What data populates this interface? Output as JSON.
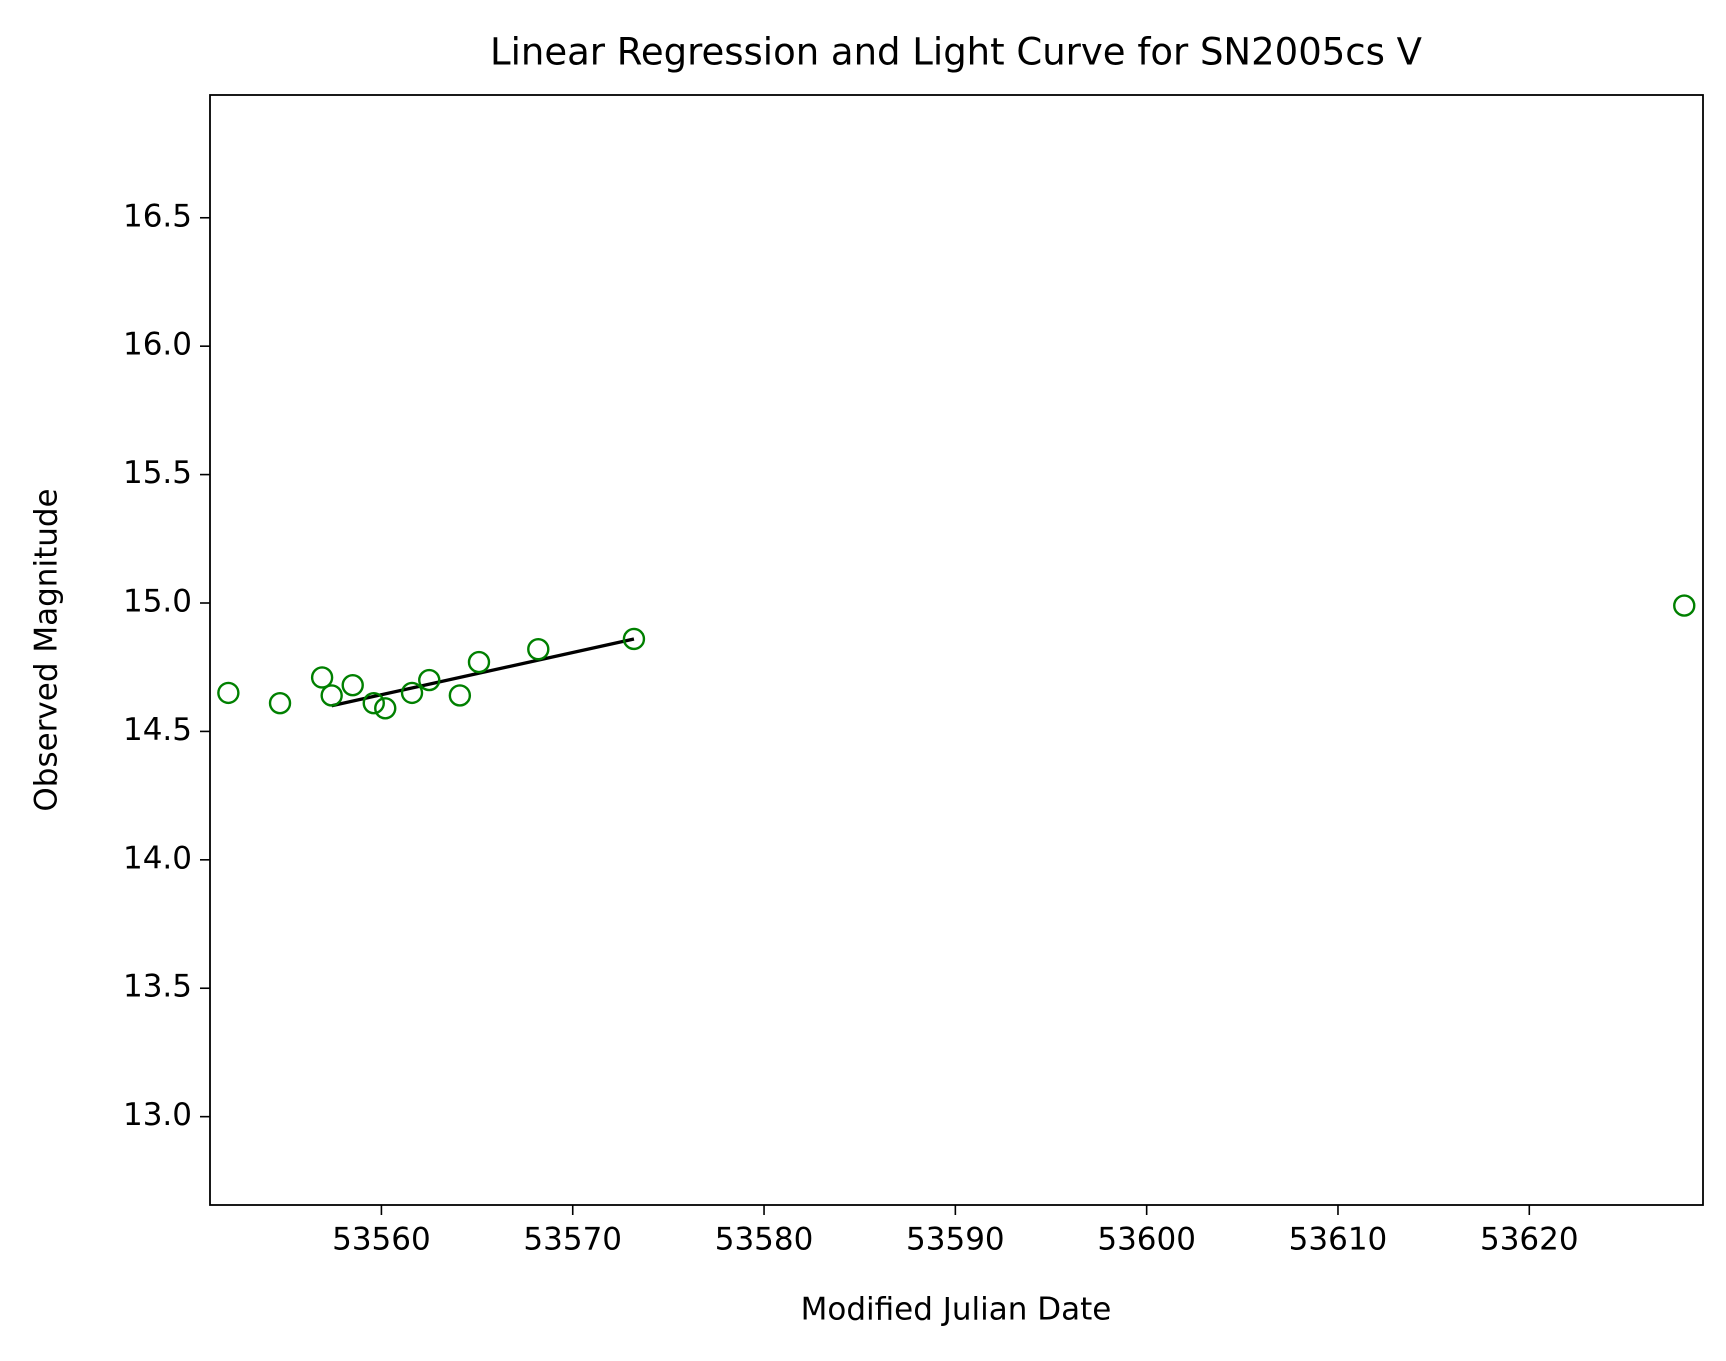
{
  "chart_data": {
    "type": "scatter",
    "title": "Linear Regression and Light Curve for SN2005cs V",
    "x_label": "Modified Julian Date",
    "y_label": "Observed Magnitude",
    "x": [
      53552.0,
      53554.7,
      53556.9,
      53557.4,
      53558.5,
      53559.6,
      53560.2,
      53561.6,
      53562.5,
      53564.1,
      53565.1,
      53568.2,
      53573.2,
      53628.1
    ],
    "values": [
      14.65,
      14.61,
      14.71,
      14.64,
      14.68,
      14.61,
      14.59,
      14.65,
      14.7,
      14.64,
      14.77,
      14.82,
      14.86,
      14.99
    ],
    "color": "green",
    "fit": {
      "x": [
        53557.4,
        53573.2
      ],
      "values": [
        14.6,
        14.86
      ],
      "color": "black"
    },
    "xlim": [
      53551.04,
      53629.08
    ],
    "ylim": [
      12.656,
      16.978
    ],
    "xticks": [
      53560,
      53570,
      53580,
      53590,
      53600,
      53610,
      53620
    ],
    "yticks": [
      {
        "value": 13,
        "label": "13.0"
      },
      13.5,
      {
        "value": 14,
        "label": "14.0"
      },
      14.5,
      {
        "value": 15,
        "label": "15.0"
      },
      15.5,
      {
        "value": 16,
        "label": "16.0"
      },
      16.5
    ],
    "grid": false
  }
}
